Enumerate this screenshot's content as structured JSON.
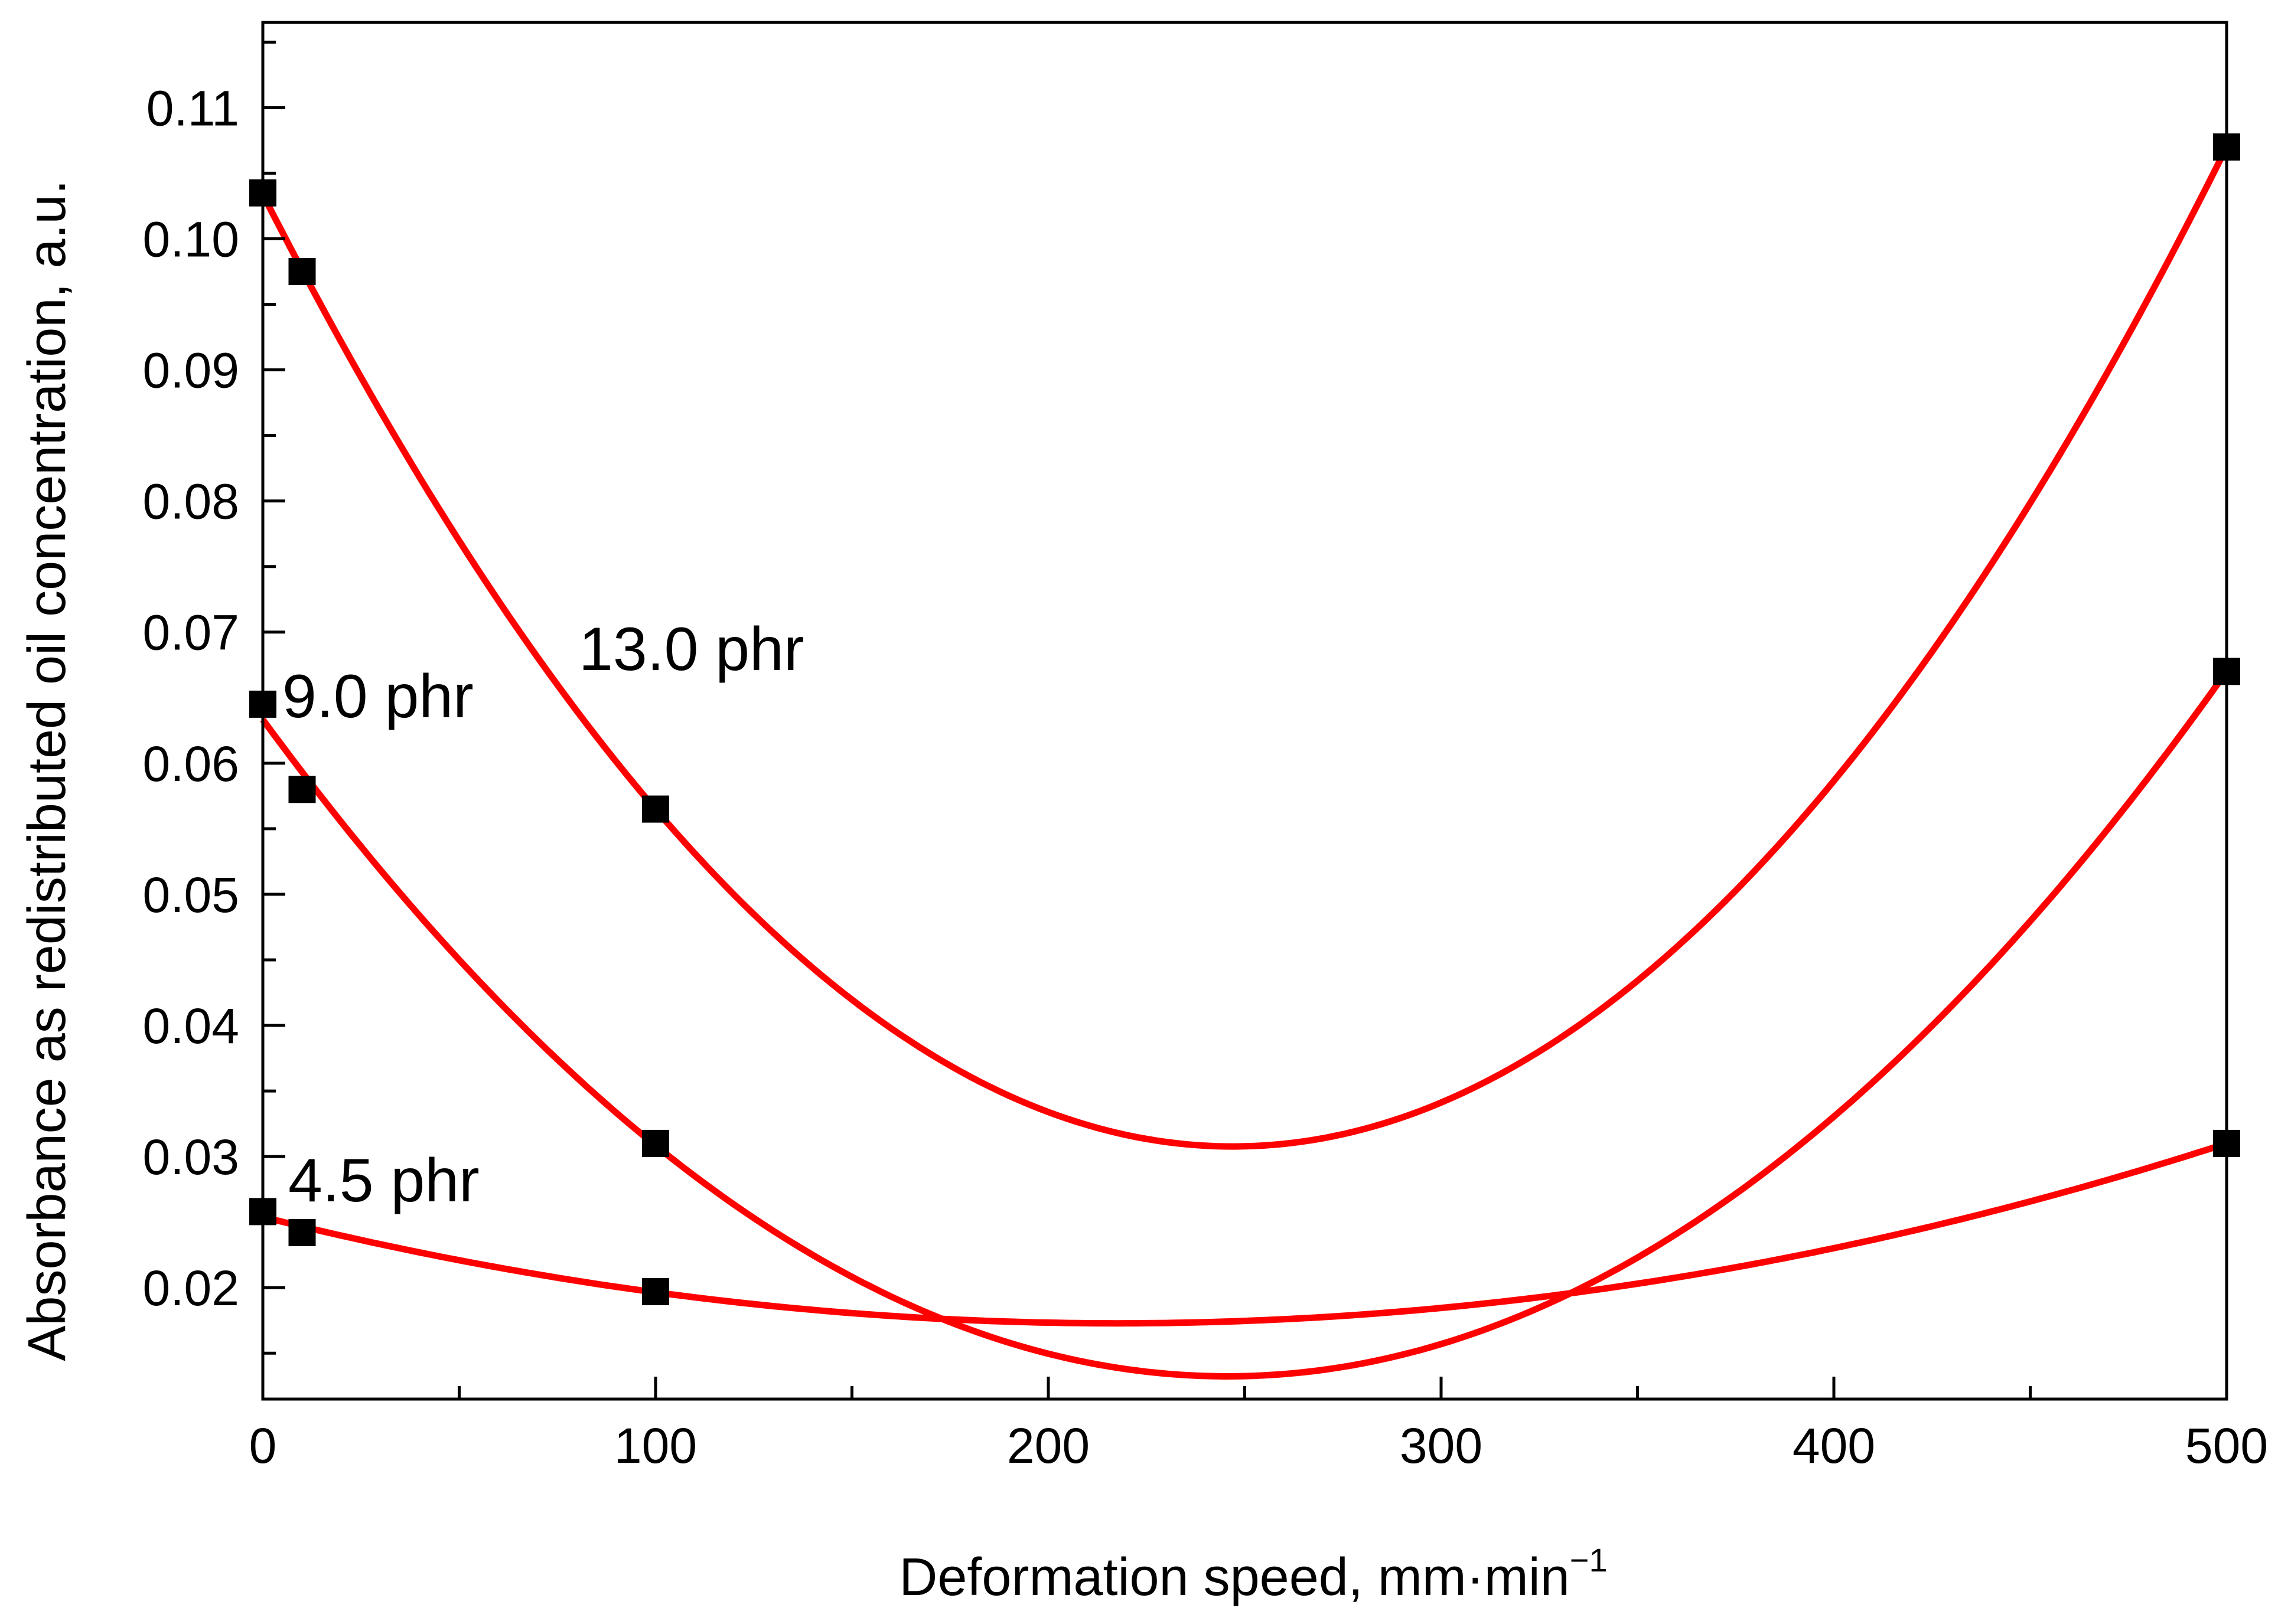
{
  "chart_data": {
    "type": "scatter",
    "title": "",
    "xlabel": "Deformation speed, mm·min",
    "xlabel_superscript": "−1",
    "ylabel": "Absorbance as redistributed oil concentration, a.u.",
    "xlim": [
      0,
      500
    ],
    "ylim": [
      0.0115,
      0.1165
    ],
    "x_ticks": [
      "0",
      "100",
      "200",
      "300",
      "400",
      "500"
    ],
    "y_ticks": [
      "0.02",
      "0.03",
      "0.04",
      "0.05",
      "0.06",
      "0.07",
      "0.08",
      "0.09",
      "0.10",
      "0.11"
    ],
    "grid": false,
    "series": [
      {
        "name": "13.0 phr",
        "label": "13.0 phr",
        "x": [
          0,
          10,
          100,
          500
        ],
        "y": [
          0.1035,
          0.0975,
          0.0565,
          0.107
        ],
        "fit": "quadratic"
      },
      {
        "name": "9.0 phr",
        "label": "9.0 phr",
        "x": [
          0,
          10,
          100,
          500
        ],
        "y": [
          0.0645,
          0.058,
          0.031,
          0.067
        ],
        "fit": "quadratic"
      },
      {
        "name": "4.5 phr",
        "label": "4.5 phr",
        "x": [
          0,
          10,
          100,
          500
        ],
        "y": [
          0.0258,
          0.0242,
          0.0197,
          0.031
        ],
        "fit": "quadratic"
      }
    ],
    "colors": {
      "marker": "#000000",
      "fit_line": "#ff0000",
      "axis": "#000000"
    }
  }
}
